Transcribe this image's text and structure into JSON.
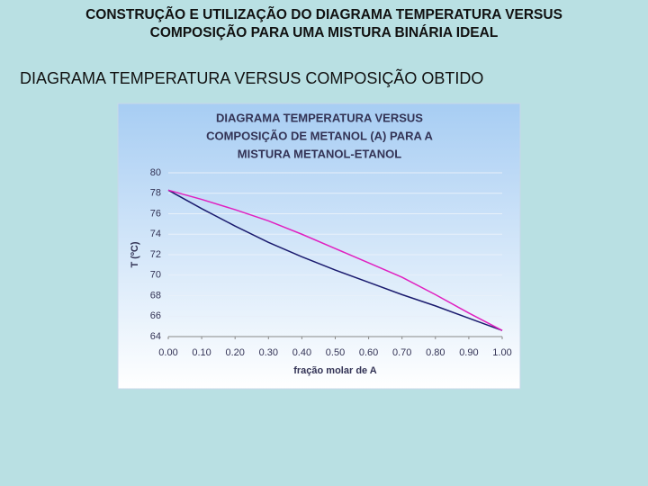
{
  "header": {
    "title": [
      "CONSTRUÇÃO E UTILIZAÇÃO DO DIAGRAMA TEMPERATURA VERSUS",
      "COMPOSIÇÃO PARA UMA MISTURA BINÁRIA IDEAL"
    ],
    "subtitle": "DIAGRAMA TEMPERATURA VERSUS COMPOSIÇÃO OBTIDO"
  },
  "chart_data": {
    "type": "line",
    "title": [
      "DIAGRAMA TEMPERATURA VERSUS",
      "COMPOSIÇÃO DE METANOL (A) PARA A",
      "MISTURA METANOL-ETANOL"
    ],
    "xlabel": "fração molar de A",
    "ylabel": "T (ºC)",
    "x": [
      0,
      0.1,
      0.2,
      0.3,
      0.4,
      0.5,
      0.6,
      0.7,
      0.8,
      0.9,
      1
    ],
    "series": [
      {
        "color": "#1a1a6e",
        "values": [
          78.3,
          76.5,
          74.8,
          73.2,
          71.8,
          70.5,
          69.3,
          68.1,
          67.0,
          65.8,
          64.6
        ]
      },
      {
        "color": "#e020c0",
        "values": [
          78.3,
          77.4,
          76.4,
          75.3,
          74.0,
          72.6,
          71.2,
          69.8,
          68.1,
          66.3,
          64.6
        ]
      }
    ],
    "xlim": [
      0,
      1
    ],
    "xticks": [
      {
        "value": 0,
        "label": "0.00"
      },
      {
        "value": 0.1,
        "label": "0.10"
      },
      {
        "value": 0.2,
        "label": "0.20"
      },
      {
        "value": 0.3,
        "label": "0.30"
      },
      {
        "value": 0.4,
        "label": "0.40"
      },
      {
        "value": 0.5,
        "label": "0.50"
      },
      {
        "value": 0.6,
        "label": "0.60"
      },
      {
        "value": 0.7,
        "label": "0.70"
      },
      {
        "value": 0.8,
        "label": "0.80"
      },
      {
        "value": 0.9,
        "label": "0.90"
      },
      {
        "value": 1,
        "label": "1.00"
      }
    ],
    "ylim": [
      64,
      80
    ],
    "yticks": [
      64,
      66,
      68,
      70,
      72,
      74,
      76,
      78,
      80
    ],
    "grid": true
  }
}
